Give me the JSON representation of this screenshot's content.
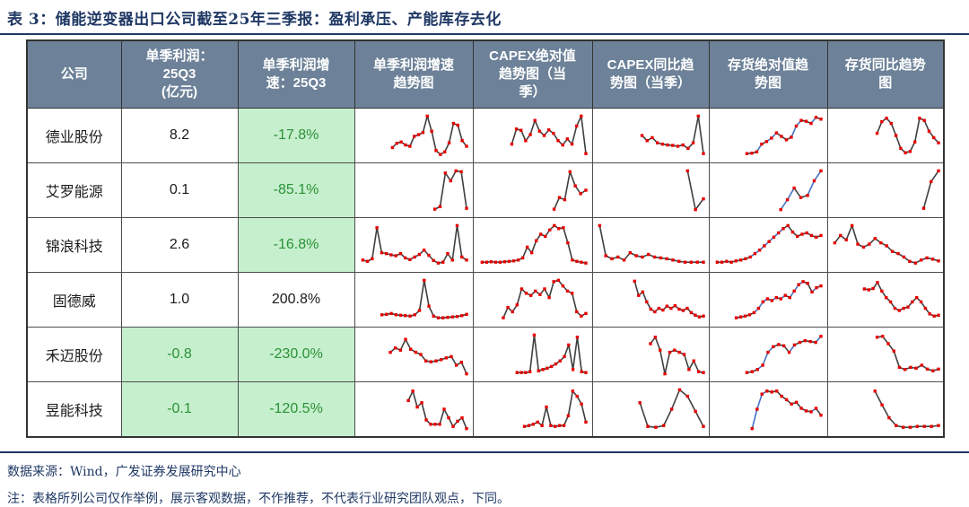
{
  "title": "表 3：储能逆变器出口公司截至25年三季报：盈利承压、产能库存去化",
  "source_line": "数据来源：Wind，广发证券发展研究中心",
  "note_line": "注：表格所列公司仅作举例，展示客观数据，不作推荐，不代表行业研究团队观点，下同。",
  "colors": {
    "navy": "#1f3864",
    "header_bg": "#6d8299",
    "header_text": "#ffffff",
    "green_bg": "#c6efce",
    "green_text": "#2a9235",
    "marker_red": "#e60000",
    "line_dark": "#3f3f3f",
    "line_blue": "#4472c4"
  },
  "table": {
    "headers": [
      "公司",
      "单季利润：\n25Q3\n(亿元)",
      "单季利润增\n速：25Q3",
      "单季利润增速\n趋势图",
      "CAPEX绝对值\n趋势图（当\n季）",
      "CAPEX同比趋\n势图（当季）",
      "存货绝对值趋\n势图",
      "存货同比趋势\n图"
    ],
    "chart_columns": [
      "profit_growth_trend",
      "capex_abs_trend",
      "capex_yoy_trend",
      "inventory_abs_trend",
      "inventory_yoy_trend"
    ],
    "rows": [
      {
        "company": "德业股份",
        "profit": "8.2",
        "profit_green": false,
        "growth": "-17.8%",
        "growth_green": true,
        "charts": {
          "profit_growth_trend": {
            "start": 0.3,
            "blue": false,
            "values": [
              0.22,
              0.32,
              0.35,
              0.28,
              0.25,
              0.48,
              0.52,
              0.57,
              0.95,
              0.6,
              0.15,
              0.06,
              0.12,
              0.33,
              0.78,
              0.74,
              0.38,
              0.25
            ]
          },
          "capex_abs_trend": {
            "start": 0.3,
            "blue": false,
            "values": [
              0.3,
              0.65,
              0.62,
              0.38,
              0.52,
              0.85,
              0.6,
              0.5,
              0.63,
              0.55,
              0.38,
              0.28,
              0.42,
              0.3,
              0.72,
              0.95,
              0.08
            ]
          },
          "capex_yoy_trend": {
            "start": 0.42,
            "blue": false,
            "values": [
              0.5,
              0.38,
              0.45,
              0.33,
              0.3,
              0.28,
              0.27,
              0.25,
              0.28,
              0.2,
              0.33,
              0.95,
              0.08
            ]
          },
          "inventory_abs_trend": {
            "start": 0.3,
            "blue": true,
            "values": [
              0.08,
              0.09,
              0.12,
              0.3,
              0.36,
              0.44,
              0.56,
              0.48,
              0.4,
              0.46,
              0.72,
              0.85,
              0.83,
              0.78,
              0.92,
              0.88
            ]
          },
          "inventory_yoy_trend": {
            "start": 0.42,
            "blue": false,
            "values": [
              0.55,
              0.82,
              0.9,
              0.78,
              0.5,
              0.2,
              0.1,
              0.13,
              0.35,
              0.9,
              0.85,
              0.6,
              0.45,
              0.33
            ]
          }
        }
      },
      {
        "company": "艾罗能源",
        "profit": "0.1",
        "profit_green": false,
        "growth": "-85.1%",
        "growth_green": true,
        "charts": {
          "profit_growth_trend": {
            "start": 0.7,
            "blue": false,
            "values": [
              0.06,
              0.12,
              0.9,
              0.72,
              0.95,
              0.93,
              0.08
            ]
          },
          "capex_abs_trend": {
            "start": 0.7,
            "blue": false,
            "values": [
              0.06,
              0.33,
              0.28,
              0.93,
              0.6,
              0.42,
              0.5
            ]
          },
          "capex_yoy_trend": {
            "start": 0.85,
            "blue": false,
            "values": [
              0.95,
              0.05,
              0.3
            ]
          },
          "inventory_abs_trend": {
            "start": 0.62,
            "blue": true,
            "values": [
              0.05,
              0.28,
              0.55,
              0.33,
              0.38,
              0.72,
              0.95
            ]
          },
          "inventory_yoy_trend": {
            "start": 0.86,
            "blue": false,
            "values": [
              0.08,
              0.7,
              0.95
            ]
          }
        }
      },
      {
        "company": "锦浪科技",
        "profit": "2.6",
        "profit_green": false,
        "growth": "-16.8%",
        "growth_green": true,
        "charts": {
          "profit_growth_trend": {
            "start": 0.02,
            "blue": false,
            "values": [
              0.15,
              0.12,
              0.18,
              0.9,
              0.32,
              0.3,
              0.27,
              0.25,
              0.3,
              0.2,
              0.16,
              0.22,
              0.28,
              0.38,
              0.26,
              0.14,
              0.08,
              0.1,
              0.3,
              0.15,
              0.95,
              0.22,
              0.15
            ]
          },
          "capex_abs_trend": {
            "start": 0.02,
            "blue": false,
            "values": [
              0.1,
              0.1,
              0.11,
              0.1,
              0.1,
              0.11,
              0.12,
              0.13,
              0.15,
              0.2,
              0.45,
              0.32,
              0.6,
              0.75,
              0.7,
              0.85,
              0.95,
              0.88,
              0.9,
              0.55,
              0.15,
              0.12,
              0.1,
              0.08
            ]
          },
          "capex_yoy_trend": {
            "start": 0.02,
            "blue": false,
            "values": [
              0.95,
              0.25,
              0.18,
              0.22,
              0.15,
              0.32,
              0.25,
              0.22,
              0.28,
              0.22,
              0.2,
              0.18,
              0.15,
              0.12,
              0.1,
              0.1,
              0.1,
              0.1
            ]
          },
          "inventory_abs_trend": {
            "start": 0.02,
            "blue": true,
            "values": [
              0.1,
              0.1,
              0.12,
              0.1,
              0.13,
              0.15,
              0.18,
              0.22,
              0.3,
              0.38,
              0.48,
              0.58,
              0.68,
              0.78,
              0.88,
              0.95,
              0.8,
              0.7,
              0.75,
              0.78,
              0.72,
              0.68,
              0.72
            ]
          },
          "inventory_yoy_trend": {
            "start": 0.02,
            "blue": false,
            "values": [
              0.55,
              0.72,
              0.62,
              0.95,
              0.52,
              0.45,
              0.52,
              0.65,
              0.55,
              0.48,
              0.35,
              0.3,
              0.22,
              0.12,
              0.08,
              0.15,
              0.2,
              0.17,
              0.13
            ]
          }
        }
      },
      {
        "company": "固德威",
        "profit": "1.0",
        "profit_green": false,
        "growth": "200.8%",
        "growth_green": false,
        "charts": {
          "profit_growth_trend": {
            "start": 0.2,
            "blue": false,
            "values": [
              0.15,
              0.16,
              0.18,
              0.15,
              0.14,
              0.13,
              0.12,
              0.15,
              0.25,
              0.95,
              0.35,
              0.12,
              0.08,
              0.08,
              0.09,
              0.1,
              0.11,
              0.13,
              0.16
            ]
          },
          "capex_abs_trend": {
            "start": 0.22,
            "blue": false,
            "values": [
              0.08,
              0.32,
              0.22,
              0.38,
              0.75,
              0.65,
              0.6,
              0.7,
              0.62,
              0.75,
              0.55,
              0.92,
              0.95,
              0.82,
              0.7,
              0.65,
              0.22,
              0.12,
              0.18
            ]
          },
          "capex_yoy_trend": {
            "start": 0.35,
            "blue": false,
            "values": [
              0.93,
              0.6,
              0.68,
              0.45,
              0.28,
              0.22,
              0.3,
              0.26,
              0.35,
              0.3,
              0.36,
              0.28,
              0.25,
              0.3,
              0.2,
              0.14,
              0.1,
              0.12
            ]
          },
          "inventory_abs_trend": {
            "start": 0.2,
            "blue": true,
            "values": [
              0.08,
              0.1,
              0.12,
              0.15,
              0.2,
              0.3,
              0.45,
              0.52,
              0.48,
              0.55,
              0.52,
              0.6,
              0.55,
              0.7,
              0.85,
              0.92,
              0.88,
              0.68,
              0.78,
              0.82
            ]
          },
          "inventory_yoy_trend": {
            "start": 0.3,
            "blue": false,
            "values": [
              0.75,
              0.73,
              0.76,
              0.9,
              0.7,
              0.55,
              0.45,
              0.3,
              0.25,
              0.3,
              0.33,
              0.45,
              0.55,
              0.45,
              0.3,
              0.17,
              0.12,
              0.14
            ]
          }
        }
      },
      {
        "company": "禾迈股份",
        "profit": "-0.8",
        "profit_green": true,
        "growth": "-230.0%",
        "growth_green": true,
        "charts": {
          "profit_growth_trend": {
            "start": 0.28,
            "blue": false,
            "values": [
              0.55,
              0.65,
              0.6,
              0.85,
              0.62,
              0.55,
              0.5,
              0.35,
              0.33,
              0.35,
              0.38,
              0.42,
              0.45,
              0.25,
              0.32,
              0.05
            ]
          },
          "capex_abs_trend": {
            "start": 0.35,
            "blue": false,
            "values": [
              0.08,
              0.08,
              0.08,
              0.1,
              0.95,
              0.12,
              0.15,
              0.18,
              0.22,
              0.28,
              0.35,
              0.45,
              0.72,
              0.15,
              0.9,
              0.1,
              0.08
            ]
          },
          "capex_yoy_trend": {
            "start": 0.5,
            "blue": false,
            "values": [
              0.75,
              0.9,
              0.6,
              0.05,
              0.55,
              0.6,
              0.55,
              0.5,
              0.15,
              0.35,
              0.1,
              0.08
            ]
          },
          "inventory_abs_trend": {
            "start": 0.3,
            "blue": true,
            "values": [
              0.08,
              0.1,
              0.15,
              0.25,
              0.55,
              0.68,
              0.73,
              0.7,
              0.55,
              0.72,
              0.78,
              0.82,
              0.8,
              0.78,
              0.92
            ]
          },
          "inventory_yoy_trend": {
            "start": 0.42,
            "blue": false,
            "values": [
              0.9,
              0.92,
              0.75,
              0.58,
              0.2,
              0.15,
              0.2,
              0.18,
              0.25,
              0.16,
              0.12,
              0.16
            ]
          }
        }
      },
      {
        "company": "昱能科技",
        "profit": "-0.1",
        "profit_green": true,
        "growth": "-120.5%",
        "growth_green": true,
        "charts": {
          "profit_growth_trend": {
            "start": 0.45,
            "blue": false,
            "values": [
              0.7,
              0.92,
              0.55,
              0.65,
              0.25,
              0.15,
              0.15,
              0.15,
              0.5,
              0.3,
              0.1,
              0.22,
              0.3,
              0.05
            ]
          },
          "capex_abs_trend": {
            "start": 0.42,
            "blue": false,
            "values": [
              0.1,
              0.12,
              0.15,
              0.2,
              0.12,
              0.55,
              0.12,
              0.1,
              0.12,
              0.12,
              0.35,
              0.92,
              0.8,
              0.62,
              0.2
            ]
          },
          "capex_yoy_trend": {
            "start": 0.4,
            "blue": false,
            "values": [
              0.65,
              0.1,
              0.08,
              0.12,
              0.5,
              0.95,
              0.8,
              0.45,
              0.1
            ]
          },
          "inventory_abs_trend": {
            "start": 0.35,
            "blue": true,
            "values": [
              0.05,
              0.5,
              0.85,
              0.92,
              0.9,
              0.92,
              0.8,
              0.72,
              0.62,
              0.66,
              0.52,
              0.46,
              0.44,
              0.52,
              0.36
            ]
          },
          "inventory_yoy_trend": {
            "start": 0.4,
            "blue": false,
            "values": [
              0.92,
              0.6,
              0.3,
              0.12,
              0.08,
              0.08,
              0.1,
              0.1,
              0.1,
              0.12
            ]
          }
        }
      }
    ]
  }
}
